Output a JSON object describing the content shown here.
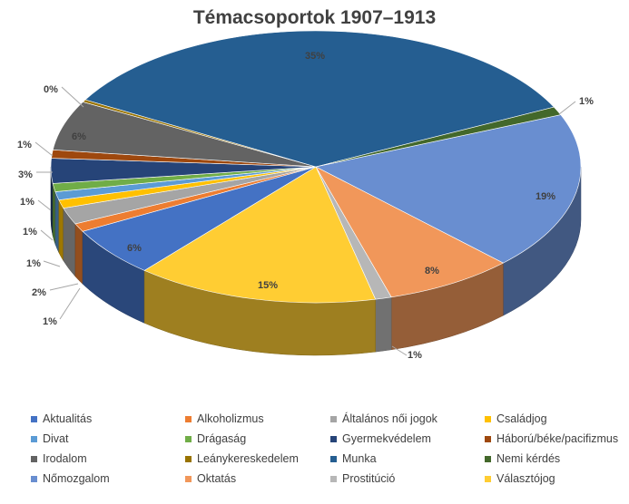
{
  "colors": {
    "Aktualitás": "#4472c4",
    "Alkoholizmus": "#ed7d31",
    "Általános női jogok": "#a5a5a5",
    "Családjog": "#ffc000",
    "Divat": "#5b9bd5",
    "Drágaság": "#70ad47",
    "Gyermekvédelem": "#264478",
    "Háború/béke/pacifizmus": "#9e480e",
    "Irodalom": "#636363",
    "Leánykereskedelem": "#997300",
    "Munka": "#255e91",
    "Nemi kérdés": "#43682b",
    "Nőmozgalom": "#698ed0",
    "Oktatás": "#f1975a",
    "Prostitúció": "#b7b7b7",
    "Választójog": "#ffcd33"
  },
  "chart_data": {
    "type": "pie",
    "title": "Témacsoportok 1907–1913",
    "categories": [
      "Aktualitás",
      "Alkoholizmus",
      "Általános női jogok",
      "Családjog",
      "Divat",
      "Drágaság",
      "Gyermekvédelem",
      "Háború/béke/pacifizmus",
      "Irodalom",
      "Leánykereskedelem",
      "Munka",
      "Nemi kérdés",
      "Nőmozgalom",
      "Oktatás",
      "Prostitúció",
      "Választójog"
    ],
    "values": [
      6,
      1,
      2,
      1,
      1,
      1,
      3,
      1,
      6,
      0,
      35,
      1,
      19,
      8,
      1,
      15
    ],
    "labels": [
      "6%",
      "1%",
      "2%",
      "1%",
      "1%",
      "1%",
      "3%",
      "1%",
      "6%",
      "0%",
      "35%",
      "1%",
      "19%",
      "8%",
      "1%",
      "15%"
    ],
    "legend_position": "bottom"
  }
}
